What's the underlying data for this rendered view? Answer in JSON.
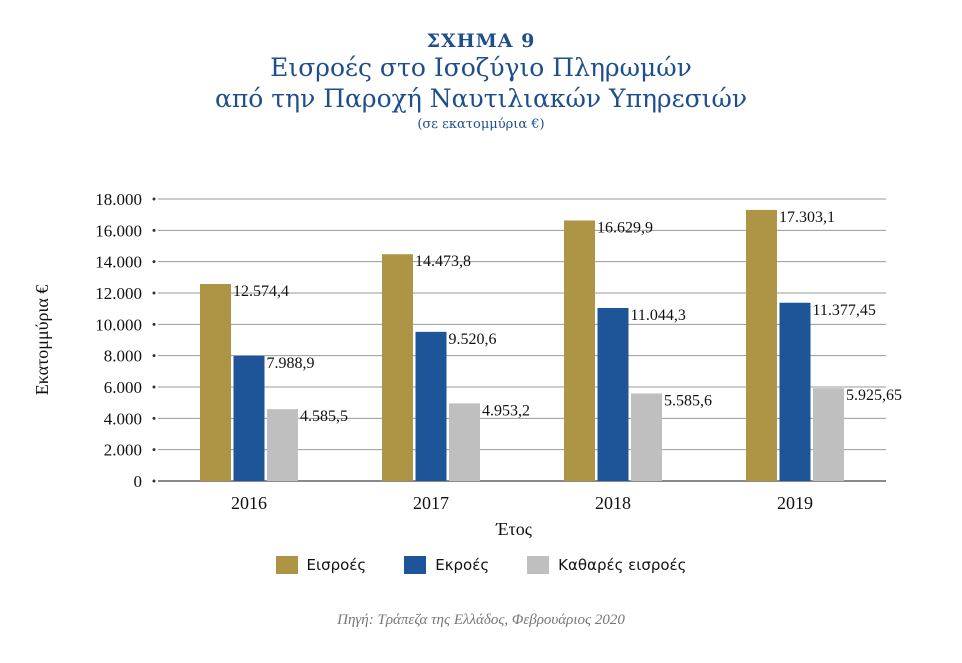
{
  "header": {
    "figure_label": "ΣΧΗΜΑ 9",
    "title_line1": "Εισροές στο Ισοζύγιο Πληρωμών",
    "title_line2": "από την Παροχή Ναυτιλιακών Υπηρεσιών",
    "subtitle": "(σε εκατομμύρια €)"
  },
  "chart_data": {
    "type": "bar",
    "categories": [
      "2016",
      "2017",
      "2018",
      "2019"
    ],
    "series": [
      {
        "name": "Εισροές",
        "color": "#ae9546",
        "values": [
          12574.4,
          14473.8,
          16629.9,
          17303.1
        ],
        "labels": [
          "12.574,4",
          "14.473,8",
          "16.629,9",
          "17.303,1"
        ]
      },
      {
        "name": "Εκροές",
        "color": "#1d5598",
        "values": [
          7988.9,
          9520.6,
          11044.3,
          11377.45
        ],
        "labels": [
          "7.988,9",
          "9.520,6",
          "11.044,3",
          "11.377,45"
        ]
      },
      {
        "name": "Καθαρές εισροές",
        "color": "#bfbfbf",
        "values": [
          4585.5,
          4953.2,
          5585.6,
          5925.65
        ],
        "labels": [
          "4.585,5",
          "4.953,2",
          "5.585,6",
          "5.925,65"
        ]
      }
    ],
    "xlabel": "Έτος",
    "ylabel": "Εκατομμύρια €",
    "ylim": [
      0,
      18000
    ],
    "yticks": [
      0,
      2000,
      4000,
      6000,
      8000,
      10000,
      12000,
      14000,
      16000,
      18000
    ],
    "ytick_labels": [
      "0",
      "2.000",
      "4.000",
      "6.000",
      "8.000",
      "10.000",
      "12.000",
      "14.000",
      "16.000",
      "18.000"
    ],
    "grid": true,
    "legend_position": "bottom"
  },
  "source": "Πηγή: Τράπεζα της Ελλάδος, Φεβρουάριος 2020"
}
